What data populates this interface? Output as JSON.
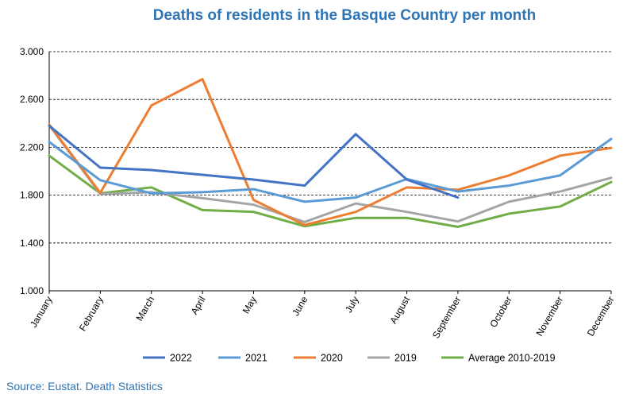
{
  "chart_data": {
    "type": "line",
    "title": "Deaths of residents in the Basque Country per month",
    "categories": [
      "January",
      "February",
      "March",
      "April",
      "May",
      "June",
      "July",
      "August",
      "September",
      "October",
      "November",
      "December"
    ],
    "ylim": [
      1000,
      3000
    ],
    "yticks": [
      1000,
      1400,
      1800,
      2200,
      2600,
      3000
    ],
    "ytick_labels": [
      "1.000",
      "1.400",
      "1.800",
      "2.200",
      "2.600",
      "3.000"
    ],
    "grid": true,
    "legend_position": "bottom",
    "series": [
      {
        "name": "2022",
        "color": "#4472c4",
        "values": [
          2380,
          2030,
          2010,
          1970,
          1930,
          1880,
          2310,
          1930,
          1780,
          null,
          null,
          null
        ]
      },
      {
        "name": "2021",
        "color": "#5b9bd5",
        "values": [
          2245,
          1925,
          1815,
          1825,
          1850,
          1745,
          1780,
          1935,
          1830,
          1880,
          1965,
          2270
        ]
      },
      {
        "name": "2020",
        "color": "#ed7d31",
        "values": [
          2390,
          1820,
          2550,
          2770,
          1760,
          1550,
          1660,
          1865,
          1845,
          1965,
          2130,
          2195
        ]
      },
      {
        "name": "2019",
        "color": "#a5a5a5",
        "values": [
          2385,
          1810,
          1825,
          1775,
          1720,
          1575,
          1730,
          1660,
          1580,
          1745,
          1830,
          1945
        ]
      },
      {
        "name": "Average 2010-2019",
        "color": "#70ad47",
        "values": [
          2130,
          1815,
          1865,
          1675,
          1660,
          1540,
          1610,
          1610,
          1535,
          1645,
          1705,
          1910
        ]
      }
    ]
  },
  "source": "Source: Eustat. Death Statistics"
}
